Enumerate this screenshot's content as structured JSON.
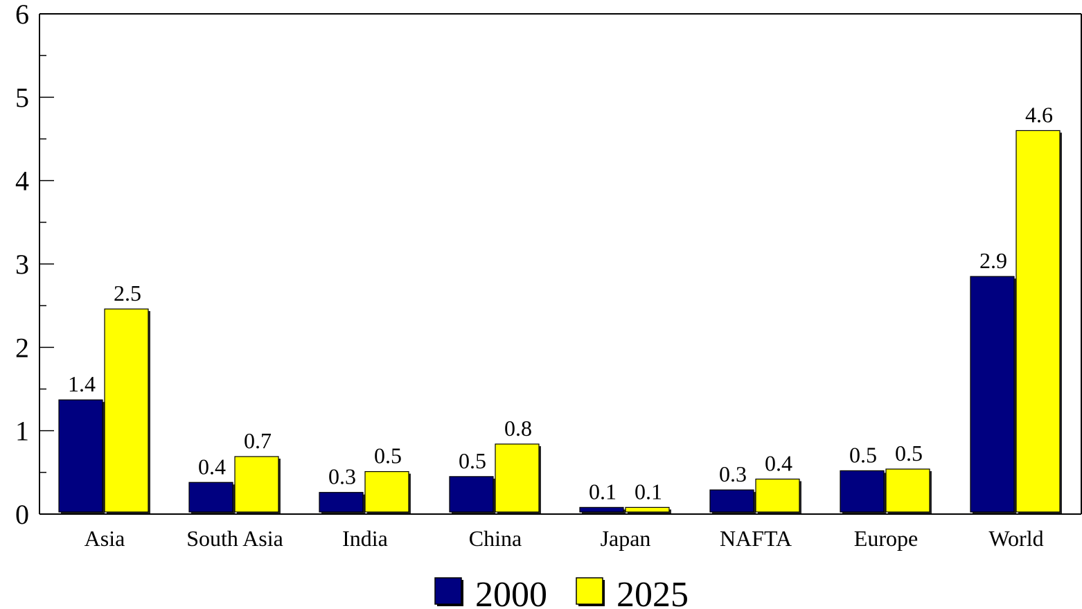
{
  "chart_data": {
    "type": "bar",
    "categories": [
      "Asia",
      "South Asia",
      "India",
      "China",
      "Japan",
      "NAFTA",
      "Europe",
      "World"
    ],
    "series": [
      {
        "name": "2000",
        "color": "#000080",
        "values": [
          1.37,
          0.38,
          0.26,
          0.45,
          0.08,
          0.29,
          0.52,
          2.85
        ],
        "labels": [
          "1.4",
          "0.4",
          "0.3",
          "0.5",
          "0.1",
          "0.3",
          "0.5",
          "2.9"
        ]
      },
      {
        "name": "2025",
        "color": "#ffff00",
        "values": [
          2.46,
          0.69,
          0.51,
          0.84,
          0.08,
          0.42,
          0.54,
          4.6
        ],
        "labels": [
          "2.5",
          "0.7",
          "0.5",
          "0.8",
          "0.1",
          "0.4",
          "0.5",
          "4.6"
        ]
      }
    ],
    "y_ticks": [
      "0",
      "1",
      "2",
      "3",
      "4",
      "5",
      "6"
    ],
    "ylim": [
      0,
      6
    ],
    "title": "",
    "xlabel": "",
    "ylabel": "",
    "grid": false,
    "legend_position": "bottom-center"
  }
}
